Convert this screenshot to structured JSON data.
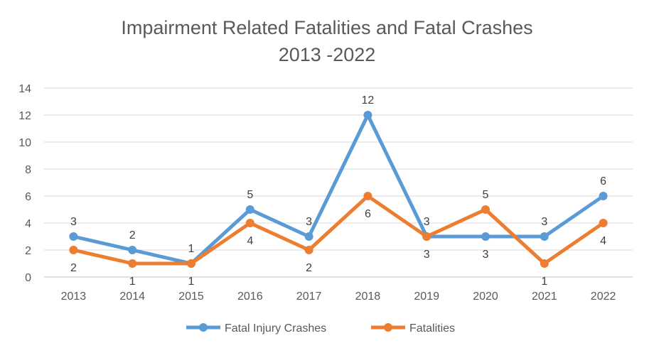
{
  "chart_data": {
    "type": "line",
    "title": "Impairment Related Fatalities and Fatal Crashes",
    "subtitle": "2013 -2022",
    "xlabel": "",
    "ylabel": "",
    "categories": [
      "2013",
      "2014",
      "2015",
      "2016",
      "2017",
      "2018",
      "2019",
      "2020",
      "2021",
      "2022"
    ],
    "ylim": [
      0,
      14
    ],
    "yticks": [
      "0",
      "2",
      "4",
      "6",
      "8",
      "10",
      "12",
      "14"
    ],
    "grid": true,
    "legend_position": "bottom",
    "series": [
      {
        "name": "Fatal Injury Crashes",
        "color": "#5B9BD5",
        "values": [
          3,
          2,
          1,
          5,
          3,
          12,
          3,
          3,
          3,
          6
        ],
        "labels": [
          "3",
          "2",
          "1",
          "5",
          "3",
          "12",
          "3",
          "3",
          "3",
          "6"
        ]
      },
      {
        "name": "Fatalities",
        "color": "#ED7D31",
        "values": [
          2,
          1,
          1,
          4,
          2,
          6,
          3,
          5,
          1,
          4
        ],
        "labels": [
          "2",
          "1",
          "1",
          "4",
          "2",
          "6",
          "3",
          "5",
          "1",
          "4"
        ]
      }
    ]
  }
}
